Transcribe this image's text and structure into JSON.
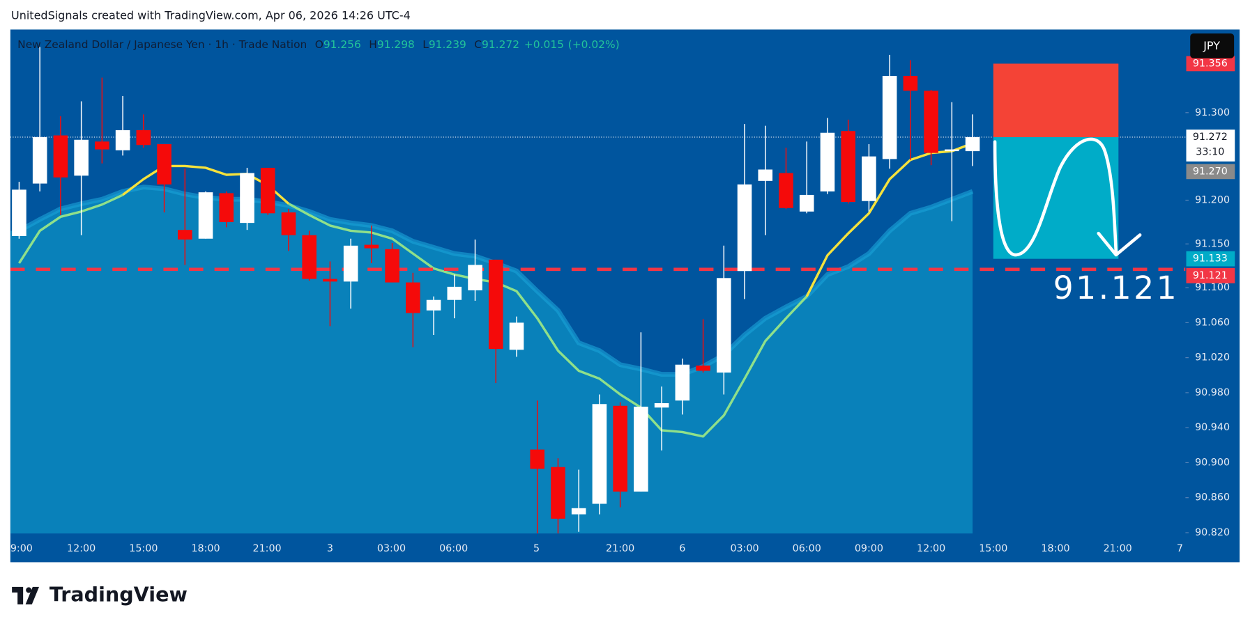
{
  "header": "UnitedSignals created with TradingView.com, Apr 06, 2026 14:26 UTC-4",
  "footer": "TradingView",
  "chart_data": {
    "type": "candlestick",
    "title": "New Zealand Dollar / Japanese Yen · 1h · Trade Nation",
    "ohlc_keys": [
      "O",
      "H",
      "L",
      "C"
    ],
    "ohlc": [
      91.256,
      91.298,
      91.239,
      91.272
    ],
    "change": {
      "value": 0.015,
      "label": "+0.015"
    },
    "change_pct": {
      "value": 0.02,
      "label": "(+0.02%)"
    },
    "currency": "JPY",
    "up_color": "#ffffff",
    "down_color": "#f50a0a",
    "open": [
      91.159,
      91.219,
      91.274,
      91.228,
      91.267,
      91.257,
      91.28,
      91.264,
      91.166,
      91.156,
      91.208,
      91.174,
      91.237,
      91.186,
      91.16,
      91.11,
      91.107,
      91.149,
      91.144,
      91.106,
      91.074,
      91.086,
      91.097,
      91.132,
      91.029,
      90.915,
      90.895,
      90.841,
      90.853,
      90.965,
      90.867,
      90.963,
      90.971,
      91.011,
      91.003,
      91.119,
      91.222,
      91.231,
      91.187,
      91.21,
      91.279,
      91.199,
      91.247,
      91.342,
      91.325,
      91.256,
      91.256
    ],
    "high": [
      91.221,
      91.375,
      91.296,
      91.313,
      91.34,
      91.319,
      91.298,
      91.264,
      91.236,
      91.21,
      91.21,
      91.237,
      91.237,
      91.19,
      91.165,
      91.13,
      91.156,
      91.171,
      91.151,
      91.117,
      91.09,
      91.115,
      91.155,
      91.132,
      91.067,
      90.971,
      90.905,
      90.892,
      90.978,
      90.969,
      91.049,
      90.987,
      91.019,
      91.064,
      91.148,
      91.287,
      91.285,
      91.26,
      91.267,
      91.294,
      91.292,
      91.264,
      91.366,
      91.36,
      91.326,
      91.312,
      91.298
    ],
    "low": [
      91.156,
      91.21,
      91.183,
      91.16,
      91.242,
      91.251,
      91.26,
      91.186,
      91.126,
      91.156,
      91.169,
      91.166,
      91.183,
      91.142,
      91.108,
      91.056,
      91.076,
      91.128,
      91.106,
      91.032,
      91.046,
      91.065,
      91.085,
      90.991,
      91.021,
      90.819,
      90.819,
      90.821,
      90.841,
      90.849,
      90.867,
      90.914,
      90.955,
      91.003,
      90.978,
      91.087,
      91.16,
      91.19,
      91.185,
      91.207,
      91.196,
      91.187,
      91.236,
      91.246,
      91.24,
      91.176,
      91.239
    ],
    "close": [
      91.212,
      91.272,
      91.226,
      91.269,
      91.258,
      91.28,
      91.263,
      91.218,
      91.155,
      91.209,
      91.175,
      91.231,
      91.185,
      91.16,
      91.11,
      91.107,
      91.148,
      91.145,
      91.106,
      91.071,
      91.086,
      91.101,
      91.126,
      91.03,
      91.06,
      90.893,
      90.836,
      90.848,
      90.967,
      90.867,
      90.964,
      90.968,
      91.012,
      91.005,
      91.111,
      91.218,
      91.235,
      91.191,
      91.206,
      91.277,
      91.198,
      91.25,
      91.342,
      91.325,
      91.254,
      91.258,
      91.272
    ],
    "series": [
      {
        "color": "#0a86bd",
        "fill": true,
        "values": [
          91.165,
          91.178,
          91.19,
          91.196,
          91.201,
          91.21,
          91.215,
          91.213,
          91.207,
          91.203,
          91.201,
          91.201,
          91.198,
          91.194,
          91.187,
          91.178,
          91.174,
          91.171,
          91.165,
          91.153,
          91.146,
          91.139,
          91.136,
          91.128,
          91.119,
          91.096,
          91.074,
          91.037,
          91.028,
          91.012,
          91.007,
          91.001,
          91.001,
          91.01,
          91.023,
          91.046,
          91.065,
          91.078,
          91.09,
          91.115,
          91.124,
          91.139,
          91.165,
          91.185,
          91.192,
          91.201,
          91.21
        ]
      },
      {
        "color": "#8fe08a",
        "values": [
          91.128,
          91.165,
          91.181,
          91.187,
          91.195,
          91.206,
          null,
          null,
          null,
          null,
          null,
          null,
          null,
          91.196,
          91.183,
          91.171,
          91.165,
          91.163,
          91.156,
          91.139,
          91.122,
          91.115,
          91.11,
          91.106,
          91.096,
          91.065,
          91.028,
          91.005,
          90.996,
          90.978,
          90.963,
          90.937,
          90.935,
          90.93,
          90.954,
          90.996,
          91.039,
          91.065,
          91.09,
          null,
          null,
          null,
          null,
          null,
          null,
          null,
          null
        ]
      },
      {
        "color": "#f5e23c",
        "values": [
          null,
          null,
          null,
          null,
          null,
          91.206,
          91.224,
          91.239,
          91.239,
          91.237,
          91.229,
          91.23,
          91.217,
          91.196,
          null,
          null,
          null,
          null,
          null,
          null,
          null,
          null,
          null,
          null,
          null,
          null,
          null,
          null,
          null,
          null,
          null,
          null,
          null,
          null,
          null,
          null,
          null,
          null,
          91.09,
          91.137,
          91.162,
          91.185,
          91.224,
          91.246,
          91.254,
          91.256,
          91.265
        ]
      }
    ],
    "ylim": [
      90.819,
      91.395
    ],
    "yticks": [
      {
        "value": 91.3,
        "label": "91.300"
      },
      {
        "value": 91.2,
        "label": "91.200"
      },
      {
        "value": 91.15,
        "label": "91.150"
      },
      {
        "value": 91.1,
        "label": "91.100"
      },
      {
        "value": 91.06,
        "label": "91.060"
      },
      {
        "value": 91.02,
        "label": "91.020"
      },
      {
        "value": 90.98,
        "label": "90.980"
      },
      {
        "value": 90.94,
        "label": "90.940"
      },
      {
        "value": 90.9,
        "label": "90.900"
      },
      {
        "value": 90.86,
        "label": "90.860"
      },
      {
        "value": 90.82,
        "label": "90.820"
      }
    ],
    "grid": false,
    "x_labels": [
      "9:00",
      "12:00",
      "15:00",
      "18:00",
      "21:00",
      "3",
      "03:00",
      "06:00",
      "5",
      "21:00",
      "6",
      "03:00",
      "06:00",
      "09:00",
      "12:00",
      "15:00",
      "18:00",
      "21:00",
      "7"
    ],
    "position": {
      "stop": 91.356,
      "entry": 91.272,
      "target": 91.133,
      "stop_color": "#f44336",
      "target_color": "#00acc8"
    },
    "annotation": {
      "value": 91.121,
      "label": "91.121",
      "color": "#f23645"
    },
    "price_labels": [
      {
        "value": 91.356,
        "label": "91.356",
        "color": "#f23645"
      },
      {
        "value": 91.272,
        "countdown": "33:10",
        "color": "#ffffff"
      },
      {
        "value": 91.27,
        "label": "91.270",
        "color": "#8a8a8a"
      },
      {
        "value": 91.133,
        "label": "91.133",
        "color": "#00acc8"
      },
      {
        "value": 91.121,
        "label": "91.121",
        "color": "#f23645"
      }
    ]
  }
}
